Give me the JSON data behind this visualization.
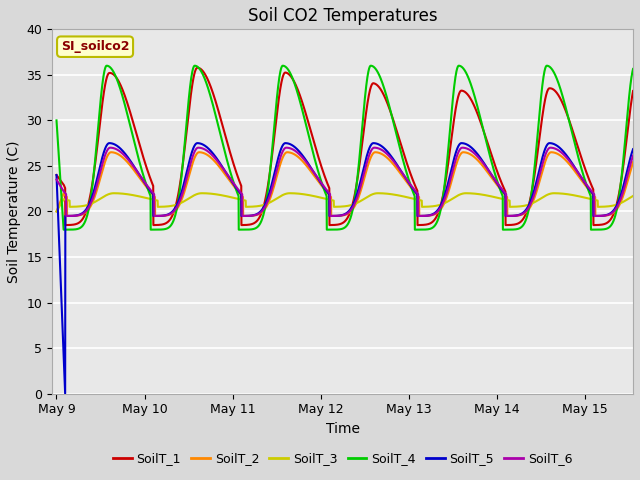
{
  "title": "Soil CO2 Temperatures",
  "xlabel": "Time",
  "ylabel": "Soil Temperature (C)",
  "annotation": "SI_soilco2",
  "ylim": [
    0,
    40
  ],
  "tick_labels": [
    "May 9",
    "May 10",
    "May 11",
    "May 12",
    "May 13",
    "May 14",
    "May 15"
  ],
  "tick_positions": [
    0,
    1,
    2,
    3,
    4,
    5,
    6
  ],
  "series_colors": [
    "#cc0000",
    "#ff8800",
    "#cccc00",
    "#00cc00",
    "#0000cc",
    "#aa00aa"
  ],
  "series_names": [
    "SoilT_1",
    "SoilT_2",
    "SoilT_3",
    "SoilT_4",
    "SoilT_5",
    "SoilT_6"
  ],
  "plot_bg_color": "#e8e8e8",
  "fig_bg_color": "#d9d9d9",
  "title_fontsize": 12,
  "axis_label_fontsize": 10,
  "tick_fontsize": 9
}
